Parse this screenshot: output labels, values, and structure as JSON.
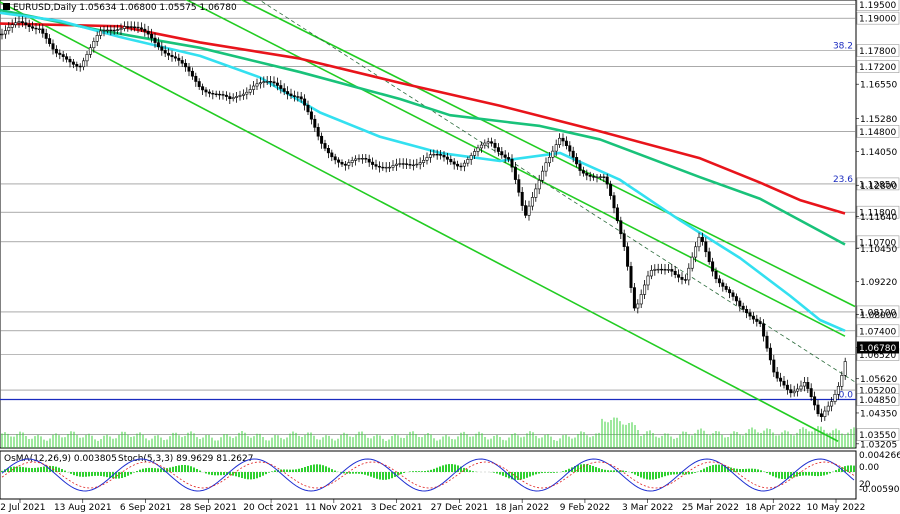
{
  "chart_data": {
    "type": "candlestick",
    "title": "EURUSD,Daily",
    "ohlc": [
      "1.05634",
      "1.06800",
      "1.05575",
      "1.06780"
    ],
    "x_ticks": [
      "22 Jul 2021",
      "13 Aug 2021",
      "6 Sep 2021",
      "28 Sep 2021",
      "20 Oct 2021",
      "11 Nov 2021",
      "3 Dec 2021",
      "27 Dec 2021",
      "18 Jan 2022",
      "9 Feb 2022",
      "3 Mar 2022",
      "25 Mar 2022",
      "18 Apr 2022",
      "10 May 2022"
    ],
    "y_ticks": [
      "1.16550",
      "1.15280",
      "1.14050",
      "1.12800",
      "1.11640",
      "1.10450",
      "1.09220",
      "1.08000",
      "1.06780",
      "1.05620",
      "1.04350",
      "1.03205"
    ],
    "ylim": [
      1.0305,
      1.196
    ],
    "levels": [
      {
        "label": "1.19500",
        "value": 1.195
      },
      {
        "label": "1.19000",
        "value": 1.19
      },
      {
        "label": "1.17800",
        "value": 1.178
      },
      {
        "label": "1.17200",
        "value": 1.172
      },
      {
        "label": "1.14800",
        "value": 1.148
      },
      {
        "label": "1.12850",
        "value": 1.1285
      },
      {
        "label": "1.11800",
        "value": 1.118
      },
      {
        "label": "1.10700",
        "value": 1.107
      },
      {
        "label": "1.08100",
        "value": 1.081
      },
      {
        "label": "1.07400",
        "value": 1.074
      },
      {
        "label": "1.06520",
        "value": 1.0652
      },
      {
        "label": "1.05200",
        "value": 1.052
      },
      {
        "label": "1.04850",
        "value": 1.0485
      },
      {
        "label": "1.03550",
        "value": 1.0355
      }
    ],
    "current_price": {
      "label": "1.06780",
      "value": 1.0678
    },
    "fib_labels": [
      {
        "label": "38.2",
        "value": 1.178
      },
      {
        "label": "23.6",
        "value": 1.1285
      },
      {
        "label": "0.0",
        "value": 1.0485
      }
    ],
    "series": [
      {
        "name": "EMA red",
        "color": "#e8141b",
        "values": [
          [
            0,
            1.188
          ],
          [
            120,
            1.187
          ],
          [
            200,
            1.181
          ],
          [
            300,
            1.175
          ],
          [
            400,
            1.166
          ],
          [
            500,
            1.1575
          ],
          [
            600,
            1.148
          ],
          [
            700,
            1.138
          ],
          [
            760,
            1.129
          ],
          [
            800,
            1.1225
          ],
          [
            845,
            1.1175
          ]
        ]
      },
      {
        "name": "EMA green",
        "color": "#19c27a",
        "values": [
          [
            0,
            1.193
          ],
          [
            100,
            1.1855
          ],
          [
            200,
            1.179
          ],
          [
            300,
            1.17
          ],
          [
            400,
            1.16
          ],
          [
            450,
            1.154
          ],
          [
            540,
            1.15
          ],
          [
            600,
            1.145
          ],
          [
            700,
            1.131
          ],
          [
            760,
            1.123
          ],
          [
            800,
            1.115
          ],
          [
            845,
            1.106
          ]
        ]
      },
      {
        "name": "EMA cyan",
        "color": "#33e0f0",
        "values": [
          [
            0,
            1.192
          ],
          [
            60,
            1.189
          ],
          [
            120,
            1.183
          ],
          [
            200,
            1.176
          ],
          [
            260,
            1.168
          ],
          [
            320,
            1.155
          ],
          [
            380,
            1.146
          ],
          [
            440,
            1.14
          ],
          [
            500,
            1.137
          ],
          [
            560,
            1.14
          ],
          [
            620,
            1.13
          ],
          [
            680,
            1.115
          ],
          [
            740,
            1.101
          ],
          [
            790,
            1.087
          ],
          [
            820,
            1.078
          ],
          [
            845,
            1.074
          ]
        ]
      }
    ],
    "channel_lines": [
      {
        "color": "#22cc22",
        "points": [
          [
            230,
            1.199
          ],
          [
            855,
            1.083
          ]
        ]
      },
      {
        "color": "#22cc22",
        "points": [
          [
            175,
            1.199
          ],
          [
            845,
            1.072
          ]
        ]
      },
      {
        "color": "#22cc22",
        "points": [
          [
            0,
            1.196
          ],
          [
            838,
            1.033
          ]
        ]
      }
    ],
    "dashed_line": {
      "color": "#2a6a3a",
      "points": [
        [
          250,
          1.199
        ],
        [
          855,
          1.055
        ]
      ]
    },
    "indicator": {
      "label": "OsMA(12,26,9) 0.003805",
      "stoch_label": "Stoch(5,3,3) 89.9629 81.2627",
      "ticks": [
        "0.0042662",
        "0.00",
        "20",
        "-0.005908"
      ]
    }
  }
}
